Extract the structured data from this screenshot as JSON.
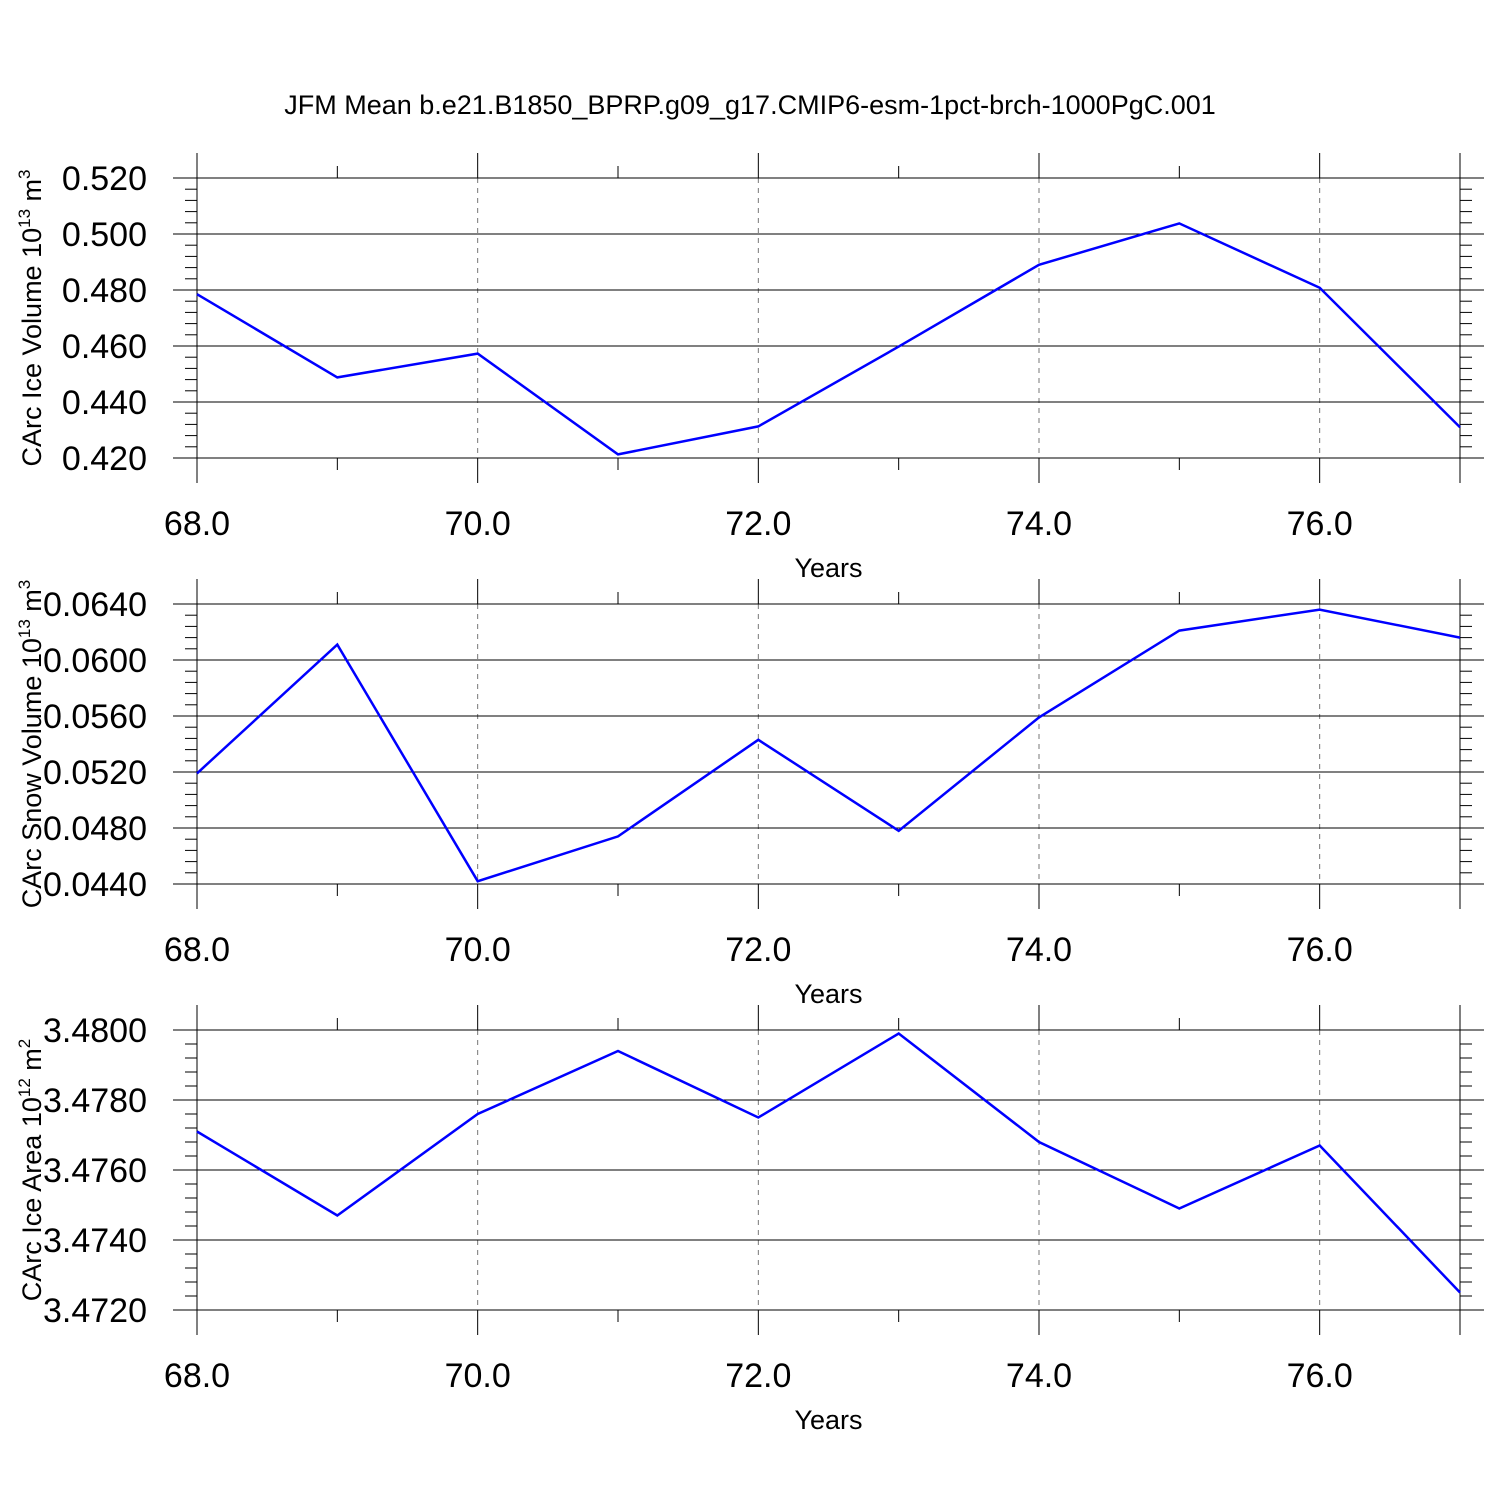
{
  "page": {
    "title": "JFM Mean b.e21.B1850_BPRP.g09_g17.CMIP6-esm-1pct-brch-1000PgC.001"
  },
  "chart_data": [
    {
      "type": "line",
      "ylabel": {
        "text": "CArc Ice Volume 10",
        "exp": "13",
        "unit": " m",
        "unit_exp": "3"
      },
      "xlabel": "Years",
      "x": [
        68,
        69,
        70,
        71,
        72,
        73,
        74,
        75,
        76,
        77
      ],
      "series": [
        {
          "values": [
            0.4785,
            0.4488,
            0.4573,
            0.4213,
            0.4313,
            0.4598,
            0.489,
            0.5038,
            0.4808,
            0.431
          ],
          "color": "#0000ff"
        }
      ],
      "xlim": [
        68,
        77
      ],
      "ylim": [
        0.42,
        0.52
      ],
      "xticks": [
        68,
        70,
        72,
        74,
        76
      ],
      "xtick_labels": [
        "68.0",
        "70.0",
        "72.0",
        "74.0",
        "76.0"
      ],
      "yticks": [
        0.42,
        0.44,
        0.46,
        0.48,
        0.5,
        0.52
      ],
      "ytick_labels": [
        "0.420",
        "0.440",
        "0.460",
        "0.480",
        "0.500",
        "0.520"
      ],
      "grid": "vertical-dashed"
    },
    {
      "type": "line",
      "ylabel": {
        "text": "CArc Snow Volume 10",
        "exp": "13",
        "unit": " m",
        "unit_exp": "3"
      },
      "xlabel": "Years",
      "x": [
        68,
        69,
        70,
        71,
        72,
        73,
        74,
        75,
        76,
        77
      ],
      "series": [
        {
          "values": [
            0.0519,
            0.0611,
            0.0442,
            0.0474,
            0.0543,
            0.0478,
            0.0559,
            0.0621,
            0.0636,
            0.0616
          ],
          "color": "#0000ff"
        }
      ],
      "xlim": [
        68,
        77
      ],
      "ylim": [
        0.044,
        0.064
      ],
      "xticks": [
        68,
        70,
        72,
        74,
        76
      ],
      "xtick_labels": [
        "68.0",
        "70.0",
        "72.0",
        "74.0",
        "76.0"
      ],
      "yticks": [
        0.044,
        0.048,
        0.052,
        0.056,
        0.06,
        0.064
      ],
      "ytick_labels": [
        "0.0440",
        "0.0480",
        "0.0520",
        "0.0560",
        "0.0600",
        "0.0640"
      ],
      "grid": "vertical-dashed"
    },
    {
      "type": "line",
      "ylabel": {
        "text": "CArc Ice Area 10",
        "exp": "12",
        "unit": " m",
        "unit_exp": "2"
      },
      "xlabel": "Years",
      "x": [
        68,
        69,
        70,
        71,
        72,
        73,
        74,
        75,
        76,
        77
      ],
      "series": [
        {
          "values": [
            3.4771,
            3.4747,
            3.4776,
            3.4794,
            3.4775,
            3.4799,
            3.4768,
            3.4749,
            3.4767,
            3.4725
          ],
          "color": "#0000ff"
        }
      ],
      "xlim": [
        68,
        77
      ],
      "ylim": [
        3.472,
        3.48
      ],
      "xticks": [
        68,
        70,
        72,
        74,
        76
      ],
      "xtick_labels": [
        "68.0",
        "70.0",
        "72.0",
        "74.0",
        "76.0"
      ],
      "yticks": [
        3.472,
        3.474,
        3.476,
        3.478,
        3.48
      ],
      "ytick_labels": [
        "3.4720",
        "3.4740",
        "3.4760",
        "3.4780",
        "3.4800"
      ],
      "grid": "vertical-dashed"
    }
  ]
}
